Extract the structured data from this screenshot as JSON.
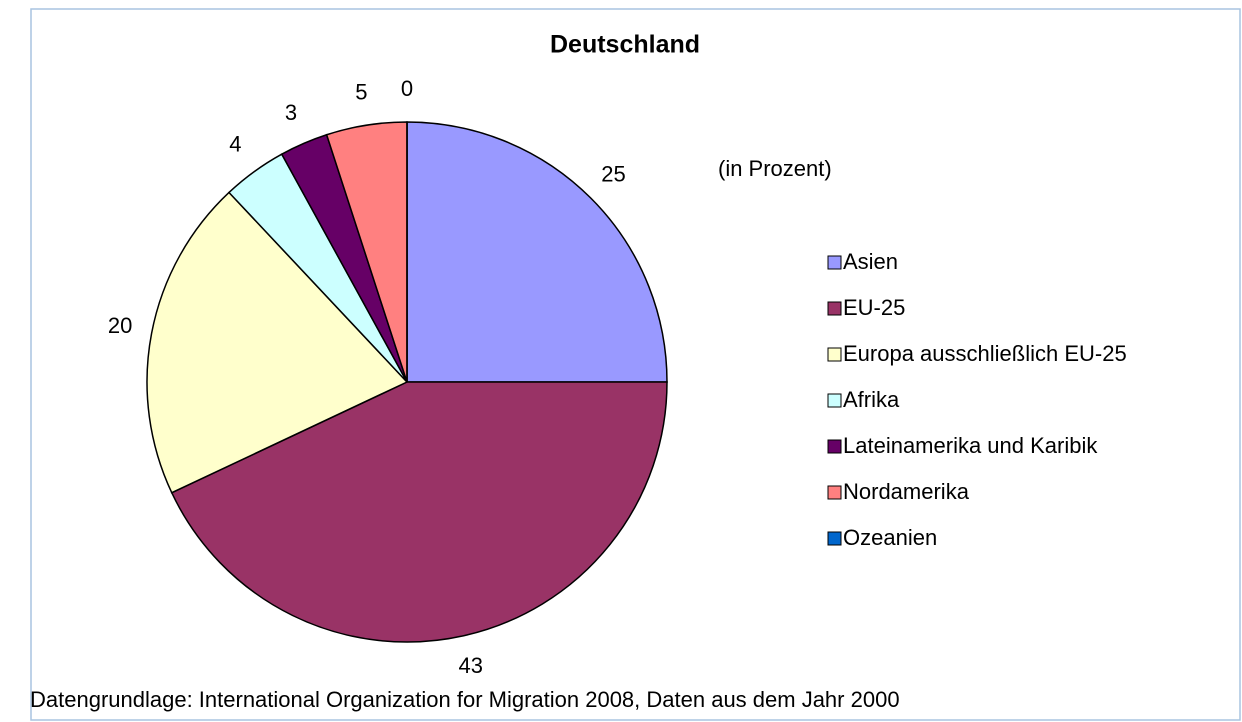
{
  "chart_data": {
    "type": "pie",
    "title": "Deutschland",
    "subtitle": "(in Prozent)",
    "source": "Datengrundlage: International Organization for Migration 2008, Daten aus dem Jahr 2000",
    "categories": [
      "Asien",
      "EU-25",
      "Europa ausschließlich EU-25",
      "Afrika",
      "Lateinamerika und Karibik",
      "Nordamerika",
      "Ozeanien"
    ],
    "values": [
      25,
      43,
      20,
      4,
      3,
      5,
      0
    ],
    "colors": [
      "#9999ff",
      "#993366",
      "#ffffcc",
      "#ccffff",
      "#660066",
      "#ff8080",
      "#0066cc"
    ],
    "legend": "right"
  }
}
